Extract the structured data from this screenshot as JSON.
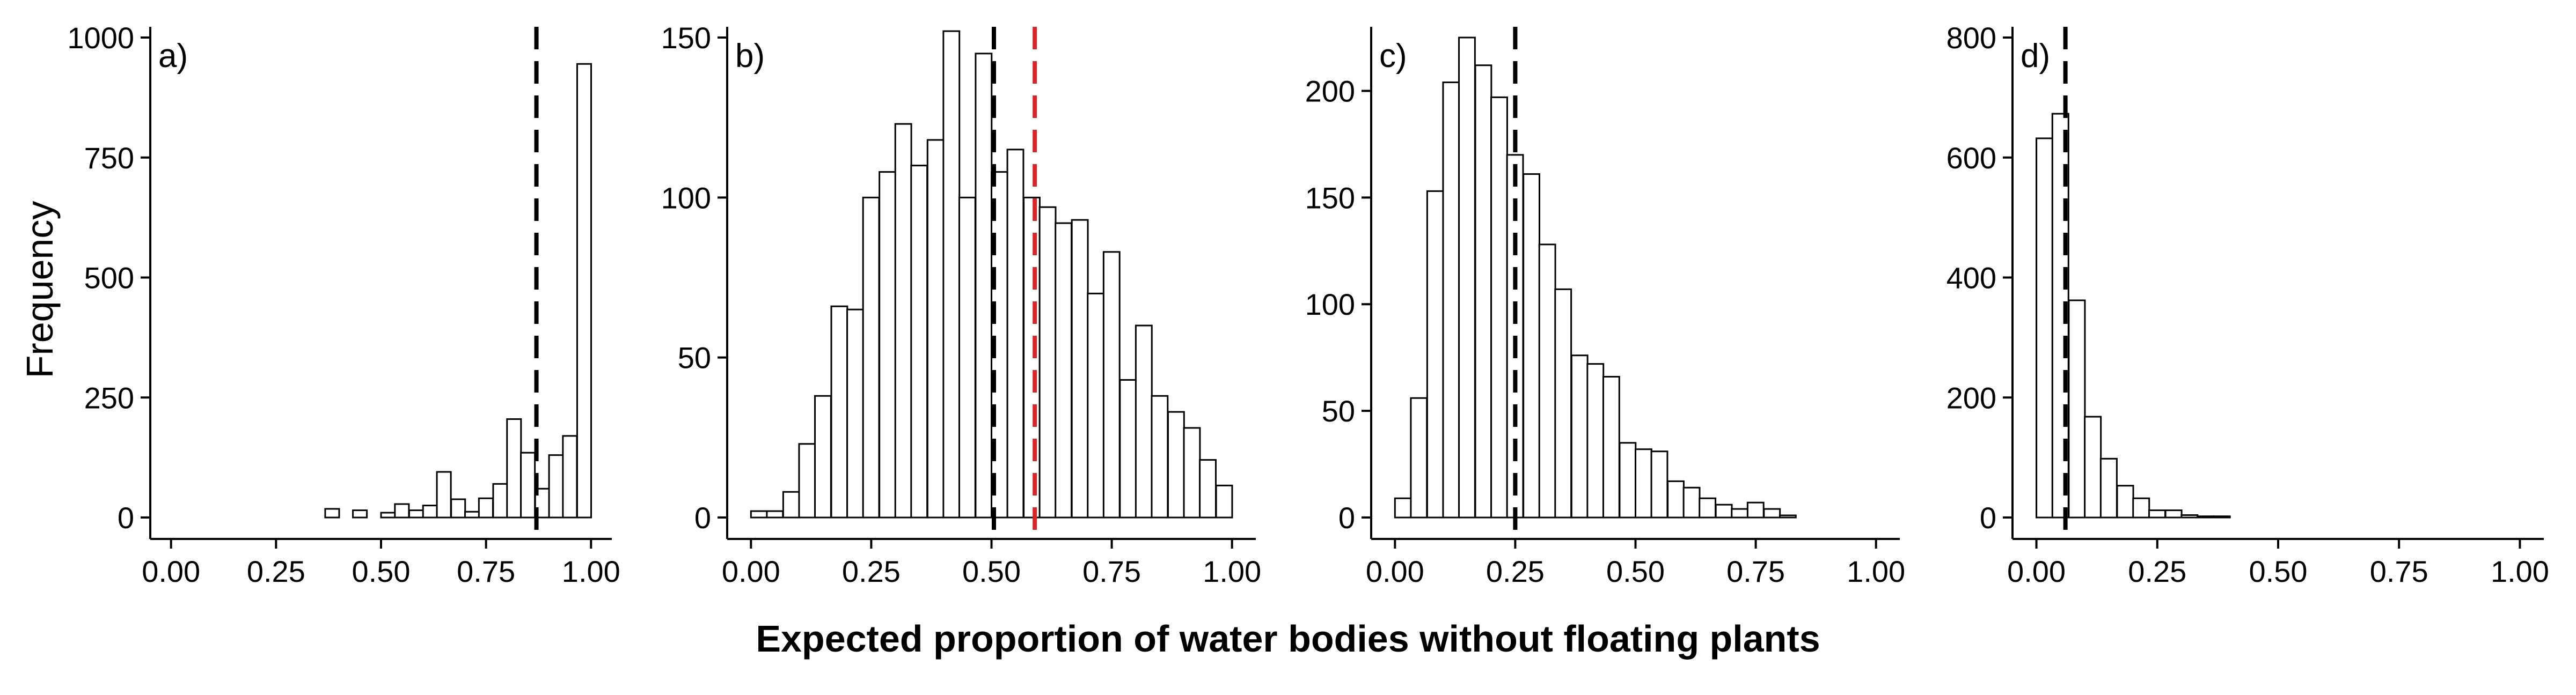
{
  "figure": {
    "ylabel": "Frequency",
    "xlabel": "Expected proportion of water bodies without floating plants"
  },
  "colors": {
    "bar_fill": "#ffffff",
    "bar_stroke": "#000000",
    "dashed_black": "#000000",
    "dashed_red": "#d62728"
  },
  "chart_data": [
    {
      "type": "bar",
      "panel_label": "a)",
      "xlim": [
        0.0,
        1.0
      ],
      "ylim": [
        0,
        1000
      ],
      "x_ticks": [
        "0.00",
        "0.25",
        "0.50",
        "0.75",
        "1.00"
      ],
      "y_ticks": [
        "0",
        "250",
        "500",
        "750",
        "1000"
      ],
      "bin_width": 0.0333,
      "bins_start": [
        0.0,
        0.033,
        0.067,
        0.1,
        0.133,
        0.167,
        0.2,
        0.233,
        0.267,
        0.3,
        0.333,
        0.367,
        0.4,
        0.433,
        0.467,
        0.5,
        0.533,
        0.567,
        0.6,
        0.633,
        0.667,
        0.7,
        0.733,
        0.767,
        0.8,
        0.833,
        0.867,
        0.9,
        0.933,
        0.967
      ],
      "values": [
        0,
        0,
        0,
        0,
        0,
        0,
        0,
        0,
        0,
        0,
        0,
        18,
        0,
        15,
        0,
        10,
        28,
        15,
        25,
        95,
        38,
        12,
        40,
        70,
        205,
        135,
        60,
        130,
        170,
        945
      ],
      "vlines": [
        {
          "x": 0.87,
          "color": "#000000"
        }
      ]
    },
    {
      "type": "bar",
      "panel_label": "b)",
      "xlim": [
        0.0,
        1.0
      ],
      "ylim": [
        0,
        150
      ],
      "x_ticks": [
        "0.00",
        "0.25",
        "0.50",
        "0.75",
        "1.00"
      ],
      "y_ticks": [
        "0",
        "50",
        "100",
        "150"
      ],
      "bin_width": 0.0333,
      "bins_start": [
        0.0,
        0.033,
        0.067,
        0.1,
        0.133,
        0.167,
        0.2,
        0.233,
        0.267,
        0.3,
        0.333,
        0.367,
        0.4,
        0.433,
        0.467,
        0.5,
        0.533,
        0.567,
        0.6,
        0.633,
        0.667,
        0.7,
        0.733,
        0.767,
        0.8,
        0.833,
        0.867,
        0.9,
        0.933,
        0.967
      ],
      "values": [
        2,
        2,
        8,
        23,
        38,
        66,
        65,
        100,
        108,
        123,
        110,
        118,
        152,
        100,
        145,
        108,
        115,
        100,
        97,
        92,
        93,
        70,
        83,
        43,
        60,
        38,
        33,
        28,
        18,
        10
      ],
      "vlines": [
        {
          "x": 0.505,
          "color": "#000000"
        },
        {
          "x": 0.59,
          "color": "#d62728"
        }
      ]
    },
    {
      "type": "bar",
      "panel_label": "c)",
      "xlim": [
        0.0,
        1.0
      ],
      "ylim": [
        0,
        225
      ],
      "x_ticks": [
        "0.00",
        "0.25",
        "0.50",
        "0.75",
        "1.00"
      ],
      "y_ticks": [
        "0",
        "50",
        "100",
        "150",
        "200"
      ],
      "bin_width": 0.0333,
      "bins_start": [
        0.0,
        0.033,
        0.067,
        0.1,
        0.133,
        0.167,
        0.2,
        0.233,
        0.267,
        0.3,
        0.333,
        0.367,
        0.4,
        0.433,
        0.467,
        0.5,
        0.533,
        0.567,
        0.6,
        0.633,
        0.667,
        0.7,
        0.733,
        0.767,
        0.8,
        0.833,
        0.867,
        0.9,
        0.933,
        0.967
      ],
      "values": [
        9,
        56,
        153,
        204,
        225,
        212,
        197,
        170,
        161,
        128,
        107,
        76,
        72,
        66,
        35,
        32,
        31,
        17,
        14,
        9,
        6,
        4,
        7,
        4,
        1,
        0,
        0,
        0,
        0,
        0
      ],
      "vlines": [
        {
          "x": 0.25,
          "color": "#000000"
        }
      ]
    },
    {
      "type": "bar",
      "panel_label": "d)",
      "xlim": [
        0.0,
        1.0
      ],
      "ylim": [
        0,
        800
      ],
      "x_ticks": [
        "0.00",
        "0.25",
        "0.50",
        "0.75",
        "1.00"
      ],
      "y_ticks": [
        "0",
        "200",
        "400",
        "600",
        "800"
      ],
      "bin_width": 0.0333,
      "bins_start": [
        0.0,
        0.033,
        0.067,
        0.1,
        0.133,
        0.167,
        0.2,
        0.233,
        0.267,
        0.3,
        0.333,
        0.367,
        0.4,
        0.433,
        0.467,
        0.5,
        0.533,
        0.567,
        0.6,
        0.633,
        0.667,
        0.7,
        0.733,
        0.767,
        0.8,
        0.833,
        0.867,
        0.9,
        0.933,
        0.967
      ],
      "values": [
        632,
        673,
        362,
        168,
        98,
        53,
        32,
        12,
        12,
        4,
        2,
        2,
        0,
        0,
        0,
        0,
        0,
        0,
        0,
        0,
        0,
        0,
        0,
        0,
        0,
        0,
        0,
        0,
        0,
        0
      ],
      "vlines": [
        {
          "x": 0.06,
          "color": "#000000"
        }
      ]
    }
  ]
}
